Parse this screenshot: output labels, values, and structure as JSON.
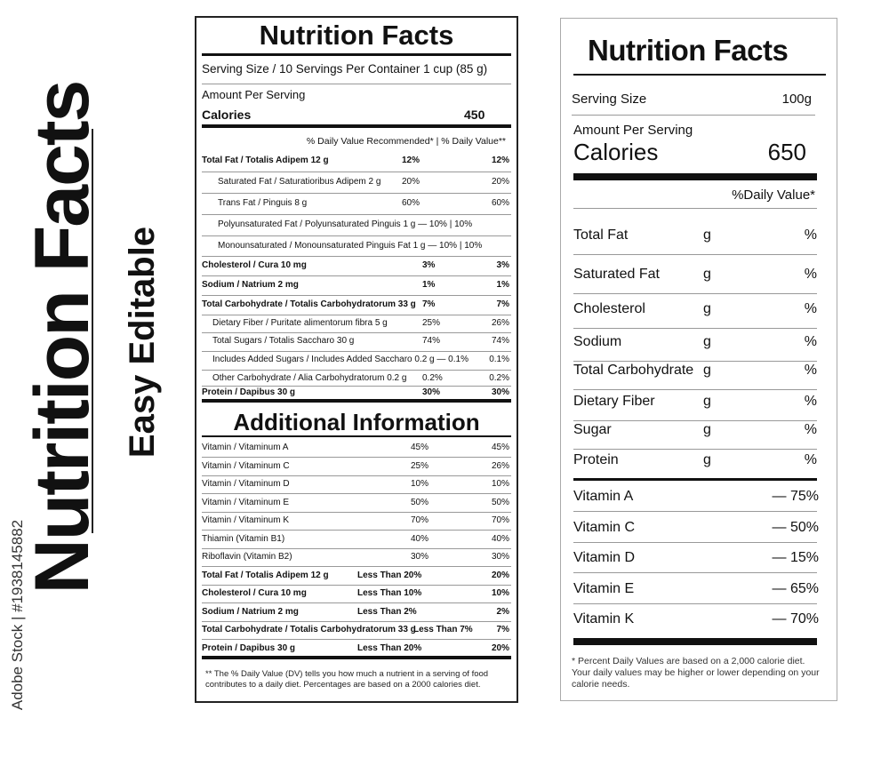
{
  "side": {
    "title": "Nutrition Facts",
    "subtitle": "Easy Editable",
    "stock": "Adobe Stock | #1938145882"
  },
  "left": {
    "title": "Nutrition Facts",
    "serving": "Serving Size / 10 Servings Per Container 1 cup (85 g)",
    "amount": "Amount Per Serving",
    "calories_label": "Calories",
    "calories_value": "450",
    "dv_header": "% Daily Value Recommended* | % Daily Value**",
    "rows": [
      {
        "label": "Total Fat / Totalis Adipem 12 g",
        "v1": "12%",
        "v2": "12%",
        "bold": true,
        "indent": 0
      },
      {
        "label": "Saturated Fat / Saturatioribus Adipem 2 g",
        "v1": "20%",
        "v2": "20%",
        "bold": false,
        "indent": 1
      },
      {
        "label": "Trans Fat / Pinguis 8 g",
        "v1": "60%",
        "v2": "60%",
        "bold": false,
        "indent": 1
      },
      {
        "label": "Polyunsaturated Fat / Polyunsaturated Pinguis 1 g — 10% | 10%",
        "v1": "",
        "v2": "",
        "bold": false,
        "indent": 1
      },
      {
        "label": "Monounsaturated / Monounsaturated Pinguis Fat 1 g — 10% | 10%",
        "v1": "",
        "v2": "",
        "bold": false,
        "indent": 1
      },
      {
        "label": "Cholesterol / Cura 10 mg",
        "v1": "3%",
        "v2": "3%",
        "bold": true,
        "indent": 0
      },
      {
        "label": "Sodium / Natrium 2 mg",
        "v1": "1%",
        "v2": "1%",
        "bold": true,
        "indent": 0
      },
      {
        "label": "Total Carbohydrate / Totalis Carbohydratorum 33 g",
        "v1": "7%",
        "v2": "7%",
        "bold": true,
        "indent": 0
      },
      {
        "label": "Dietary Fiber / Puritate alimentorum fibra 5 g",
        "v1": "25%",
        "v2": "26%",
        "bold": false,
        "indent": 2
      },
      {
        "label": "Total Sugars / Totalis Saccharo 30 g",
        "v1": "74%",
        "v2": "74%",
        "bold": false,
        "indent": 2
      },
      {
        "label": "Includes Added Sugars / Includes Added Saccharo 0.2 g — 0.1%",
        "v1": "",
        "v2": "0.1%",
        "bold": false,
        "indent": 2
      },
      {
        "label": "Other Carbohydrate / Alia Carbohydratorum 0.2 g",
        "v1": "0.2%",
        "v2": "0.2%",
        "bold": false,
        "indent": 2
      },
      {
        "label": "Protein / Dapibus 30 g",
        "v1": "30%",
        "v2": "30%",
        "bold": true,
        "indent": 0
      }
    ],
    "additional_title": "Additional Information",
    "add_rows": [
      {
        "label": "Vitamin / Vitaminum A",
        "v1": "45%",
        "v2": "45%",
        "bold": false
      },
      {
        "label": "Vitamin / Vitaminum C",
        "v1": "25%",
        "v2": "26%",
        "bold": false
      },
      {
        "label": "Vitamin / Vitaminum D",
        "v1": "10%",
        "v2": "10%",
        "bold": false
      },
      {
        "label": "Vitamin / Vitaminum E",
        "v1": "50%",
        "v2": "50%",
        "bold": false
      },
      {
        "label": "Vitamin / Vitaminum K",
        "v1": "70%",
        "v2": "70%",
        "bold": false
      },
      {
        "label": "Thiamin (Vitamin B1)",
        "v1": "40%",
        "v2": "40%",
        "bold": false
      },
      {
        "label": "Riboflavin (Vitamin B2)",
        "v1": "30%",
        "v2": "30%",
        "bold": false
      },
      {
        "label": "Total Fat / Totalis Adipem 12 g",
        "v1": "Less Than 20%",
        "v2": "20%",
        "bold": true
      },
      {
        "label": "Cholesterol / Cura 10 mg",
        "v1": "Less Than 10%",
        "v2": "10%",
        "bold": true
      },
      {
        "label": "Sodium / Natrium 2 mg",
        "v1": "Less Than 2%",
        "v2": "2%",
        "bold": true
      },
      {
        "label": "Total Carbohydrate / Totalis Carbohydratorum 33 g",
        "v1": "Less Than 7%",
        "v2": "7%",
        "bold": true
      },
      {
        "label": "Protein / Dapibus 30 g",
        "v1": "Less Than 20%",
        "v2": "20%",
        "bold": true
      }
    ],
    "footnote": "** The % Daily Value (DV) tells you how much a nutrient in a serving of food contributes to a daily diet.  Percentages are based on a 2000 calories diet."
  },
  "right": {
    "title": "Nutrition Facts",
    "serving_label": "Serving Size",
    "serving_value": "100g",
    "amount": "Amount Per Serving",
    "calories_label": "Calories",
    "calories_value": "650",
    "dv_header": "%Daily Value*",
    "rows": [
      {
        "label": "Total Fat",
        "unit": "g",
        "value": "%"
      },
      {
        "label": "Saturated Fat",
        "unit": "g",
        "value": "%"
      },
      {
        "label": "Cholesterol",
        "unit": "g",
        "value": "%"
      },
      {
        "label": "Sodium",
        "unit": "g",
        "value": "%"
      },
      {
        "label": "Total Carbohydrate",
        "unit": "g",
        "value": "%"
      },
      {
        "label": "Dietary Fiber",
        "unit": "g",
        "value": "%"
      },
      {
        "label": "Sugar",
        "unit": "g",
        "value": "%"
      },
      {
        "label": "Protein",
        "unit": "g",
        "value": "%"
      }
    ],
    "vitamins": [
      {
        "label": "Vitamin A",
        "value": "— 75%"
      },
      {
        "label": "Vitamin C",
        "value": "— 50%"
      },
      {
        "label": "Vitamin D",
        "value": "— 15%"
      },
      {
        "label": "Vitamin E",
        "value": "— 65%"
      },
      {
        "label": "Vitamin K",
        "value": "— 70%"
      }
    ],
    "footnote": "* Percent Daily Values are based on a 2,000 calorie diet. Your daily values may be higher or lower depending on your calorie needs."
  }
}
